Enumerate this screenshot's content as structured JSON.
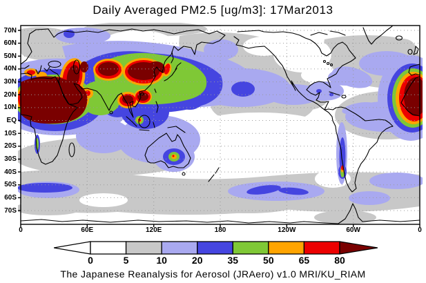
{
  "title": "Daily Averaged PM2.5 [ug/m3]: 17Mar2013",
  "caption": "The Japanese Reanalysis for Aerosol (JRAero) v1.0 MRI/KU_RIAM",
  "map": {
    "lat_labels": [
      "70N",
      "60N",
      "50N",
      "40N",
      "30N",
      "20N",
      "10N",
      "EQ",
      "10S",
      "20S",
      "30S",
      "40S",
      "50S",
      "60S",
      "70S"
    ],
    "lon_labels": [
      "0",
      "60E",
      "120E",
      "180",
      "120W",
      "60W",
      "0"
    ]
  },
  "colorbar": {
    "ticks": [
      "0",
      "5",
      "10",
      "20",
      "35",
      "50",
      "65",
      "80"
    ],
    "segment_colors": [
      "#ffffff",
      "#c8c8c8",
      "#a9a9f0",
      "#4545e0",
      "#7fc836",
      "#ffa400",
      "#ec0000"
    ],
    "arrow_left_color": "#ffffff",
    "arrow_right_color": "#7a0000"
  },
  "chart_data": {
    "type": "heatmap",
    "title": "Daily Averaged PM2.5 [ug/m3]: 17Mar2013",
    "variable": "PM2.5 daily average concentration",
    "units": "ug/m3",
    "date": "17Mar2013",
    "source": "The Japanese Reanalysis for Aerosol (JRAero) v1.0 MRI/KU_RIAM",
    "levels": [
      0,
      5,
      10,
      20,
      35,
      50,
      65,
      80
    ],
    "palette": [
      {
        "range": "< 0 (left arrow)",
        "color": "#ffffff"
      },
      {
        "range": "0-5",
        "color": "#ffffff"
      },
      {
        "range": "5-10",
        "color": "#c8c8c8"
      },
      {
        "range": "10-20",
        "color": "#a9a9f0"
      },
      {
        "range": "20-35",
        "color": "#4545e0"
      },
      {
        "range": "35-50",
        "color": "#7fc836"
      },
      {
        "range": "50-65",
        "color": "#ffa400"
      },
      {
        "range": "65-80",
        "color": "#ec0000"
      },
      {
        "range": "> 80 (right arrow)",
        "color": "#7a0000"
      }
    ],
    "lon_axis": {
      "tick_labels": [
        "0",
        "60E",
        "120E",
        "180",
        "120W",
        "60W",
        "0"
      ],
      "range_deg": [
        0,
        360
      ]
    },
    "lat_axis": {
      "tick_labels": [
        "70N",
        "60N",
        "50N",
        "40N",
        "30N",
        "20N",
        "10N",
        "EQ",
        "10S",
        "20S",
        "30S",
        "40S",
        "50S",
        "60S",
        "70S"
      ]
    },
    "grid": "dotted gridlines every 10 deg latitude and 60 deg longitude",
    "high_regions": [
      {
        "region": "Sahara / North Africa into Arabia",
        "value": "> 80"
      },
      {
        "region": "West Africa at 0 deg map seam (right edge)",
        "value": "> 80"
      },
      {
        "region": "Middle East / Turkey-Caspian band",
        "value": "> 80"
      },
      {
        "region": "Central Asia (Tarim) dust blob",
        "value": "> 80"
      },
      {
        "region": "Mongolia / Northern China",
        "value": "> 80"
      },
      {
        "region": "Sichuan, China",
        "value": "> 80"
      },
      {
        "region": "Myanmar / Yunnan, SE Asia",
        "value": "> 80"
      },
      {
        "region": "Korea / Japan outflow streak",
        "value": "50-80"
      },
      {
        "region": "NW India hotspot",
        "value": "50-65"
      },
      {
        "region": "Malay Peninsula spot",
        "value": "65-80"
      },
      {
        "region": "Central Australia spot",
        "value": "50-65"
      },
      {
        "region": "Central Chile spot",
        "value": "65-80"
      },
      {
        "region": "Angola coast streak",
        "value": "35-50"
      },
      {
        "region": "Northern mid-latitude oceans and Southern Ocean",
        "value": "5-20 background bands, 20-35 patches"
      }
    ]
  }
}
